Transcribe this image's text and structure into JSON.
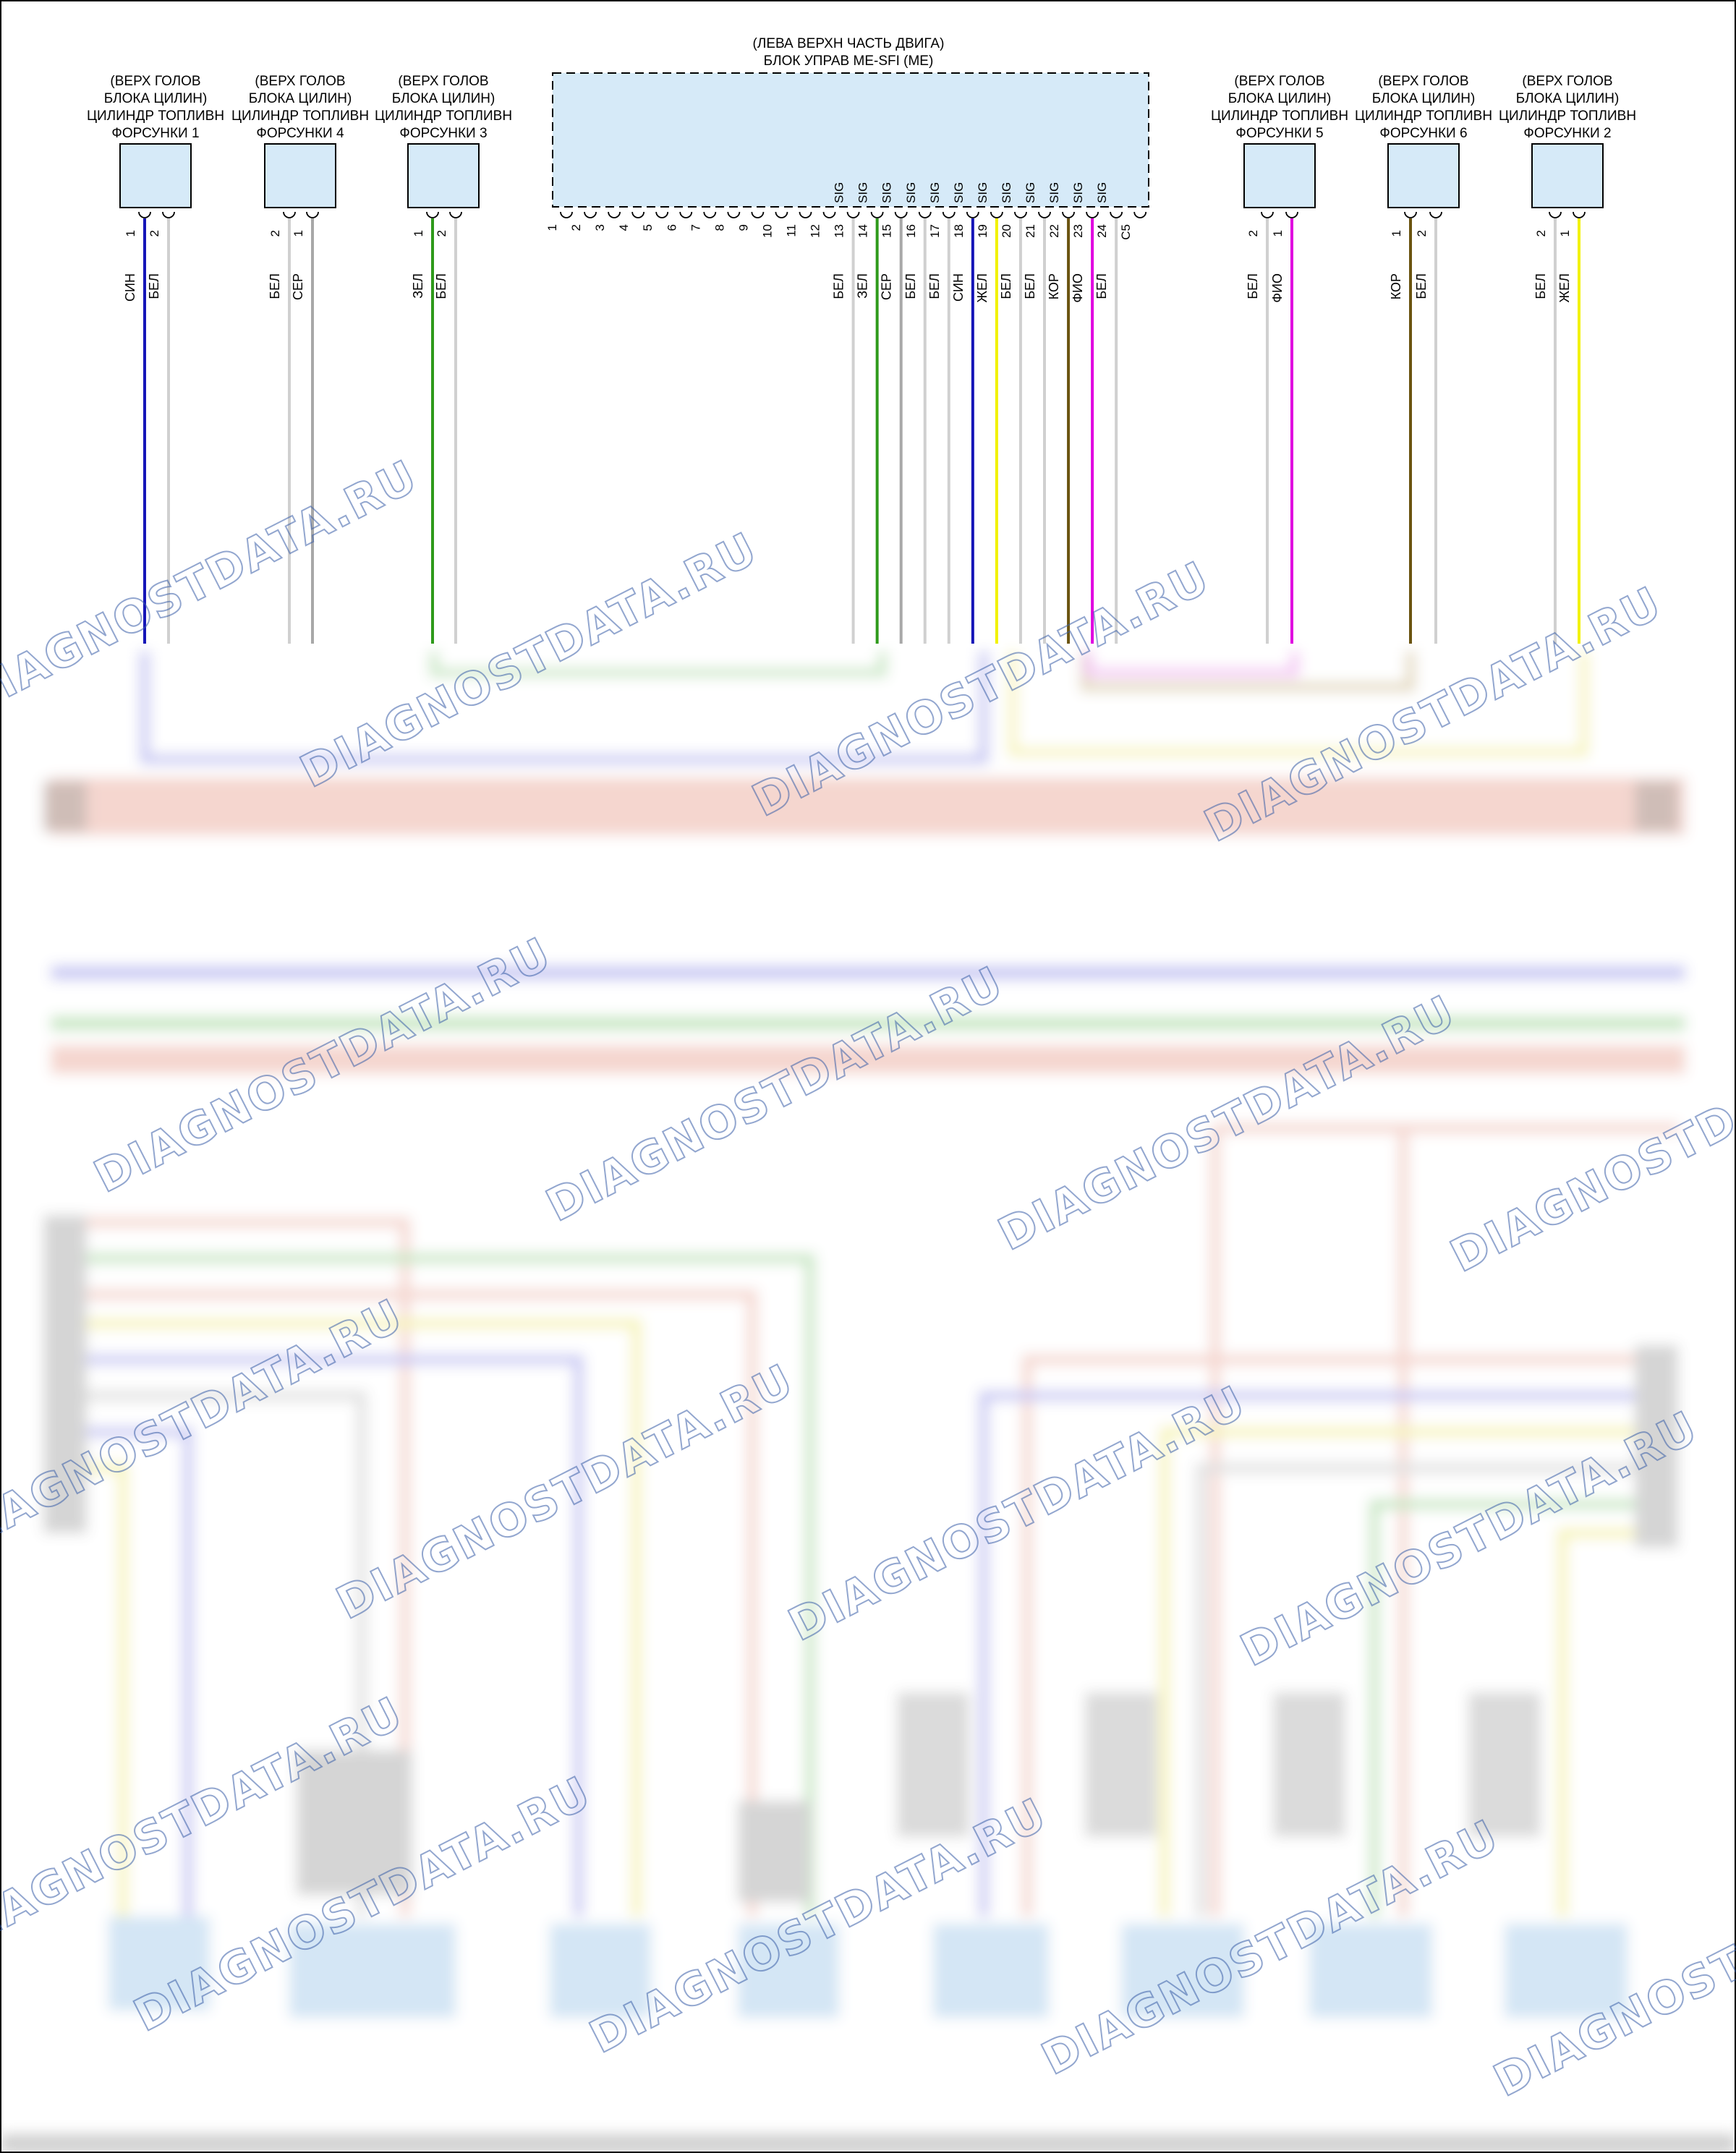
{
  "ecu": {
    "title_line1": "(ЛЕВА ВЕРХН ЧАСТЬ ДВИГА)",
    "title_line2": "БЛОК УПРАВ ME-SFI (ME)",
    "pins": [
      "1",
      "2",
      "3",
      "4",
      "5",
      "6",
      "7",
      "8",
      "9",
      "10",
      "11",
      "12",
      "13",
      "14",
      "15",
      "16",
      "17",
      "18",
      "19",
      "20",
      "21",
      "22",
      "23",
      "24",
      "C5"
    ],
    "sig_label": "SIG",
    "sig_pins": [
      "13",
      "14",
      "15",
      "16",
      "17",
      "18",
      "19",
      "20",
      "21",
      "22",
      "23",
      "24"
    ],
    "wired": [
      {
        "pin": "13",
        "color_label": "БЕЛ",
        "color": "#d0d0d0"
      },
      {
        "pin": "14",
        "color_label": "ЗЕЛ",
        "color": "#2e9a1a"
      },
      {
        "pin": "15",
        "color_label": "СЕР",
        "color": "#a8a8a8"
      },
      {
        "pin": "16",
        "color_label": "БЕЛ",
        "color": "#d0d0d0"
      },
      {
        "pin": "17",
        "color_label": "БЕЛ",
        "color": "#d0d0d0"
      },
      {
        "pin": "18",
        "color_label": "СИН",
        "color": "#1515b8"
      },
      {
        "pin": "19",
        "color_label": "ЖЕЛ",
        "color": "#f2f200"
      },
      {
        "pin": "20",
        "color_label": "БЕЛ",
        "color": "#d0d0d0"
      },
      {
        "pin": "21",
        "color_label": "БЕЛ",
        "color": "#d0d0d0"
      },
      {
        "pin": "22",
        "color_label": "КОР",
        "color": "#6b5410"
      },
      {
        "pin": "23",
        "color_label": "ФИО",
        "color": "#e000e0"
      },
      {
        "pin": "24",
        "color_label": "БЕЛ",
        "color": "#d0d0d0"
      }
    ]
  },
  "injectors": [
    {
      "line1": "(ВЕРХ ГОЛОВ",
      "line2": "БЛОКА ЦИЛИН)",
      "line3": "ЦИЛИНДР ТОПЛИВН",
      "line4": "ФОРСУНКИ 1",
      "pins": [
        {
          "num": "1",
          "color_label": "СИН",
          "color": "#1515b8"
        },
        {
          "num": "2",
          "color_label": "БЕЛ",
          "color": "#d0d0d0"
        }
      ]
    },
    {
      "line1": "(ВЕРХ ГОЛОВ",
      "line2": "БЛОКА ЦИЛИН)",
      "line3": "ЦИЛИНДР ТОПЛИВН",
      "line4": "ФОРСУНКИ 4",
      "pins": [
        {
          "num": "2",
          "color_label": "БЕЛ",
          "color": "#d0d0d0"
        },
        {
          "num": "1",
          "color_label": "СЕР",
          "color": "#a8a8a8"
        }
      ]
    },
    {
      "line1": "(ВЕРХ ГОЛОВ",
      "line2": "БЛОКА ЦИЛИН)",
      "line3": "ЦИЛИНДР ТОПЛИВН",
      "line4": "ФОРСУНКИ 3",
      "pins": [
        {
          "num": "1",
          "color_label": "ЗЕЛ",
          "color": "#2e9a1a"
        },
        {
          "num": "2",
          "color_label": "БЕЛ",
          "color": "#d0d0d0"
        }
      ]
    },
    {
      "line1": "(ВЕРХ ГОЛОВ",
      "line2": "БЛОКА ЦИЛИН)",
      "line3": "ЦИЛИНДР ТОПЛИВН",
      "line4": "ФОРСУНКИ 5",
      "pins": [
        {
          "num": "2",
          "color_label": "БЕЛ",
          "color": "#d0d0d0"
        },
        {
          "num": "1",
          "color_label": "ФИО",
          "color": "#e000e0"
        }
      ]
    },
    {
      "line1": "(ВЕРХ ГОЛОВ",
      "line2": "БЛОКА ЦИЛИН)",
      "line3": "ЦИЛИНДР ТОПЛИВН",
      "line4": "ФОРСУНКИ 6",
      "pins": [
        {
          "num": "1",
          "color_label": "КОР",
          "color": "#6b5410"
        },
        {
          "num": "2",
          "color_label": "БЕЛ",
          "color": "#d0d0d0"
        }
      ]
    },
    {
      "line1": "(ВЕРХ ГОЛОВ",
      "line2": "БЛОКА ЦИЛИН)",
      "line3": "ЦИЛИНДР ТОПЛИВН",
      "line4": "ФОРСУНКИ 2",
      "pins": [
        {
          "num": "2",
          "color_label": "БЕЛ",
          "color": "#d0d0d0"
        },
        {
          "num": "1",
          "color_label": "ЖЕЛ",
          "color": "#f2f200"
        }
      ]
    }
  ],
  "watermark": "DIAGNOSTDATA.RU",
  "colors": {
    "connector_fill": "#d6eaf8",
    "border": "#000000",
    "watermark": "#3a5fa8"
  }
}
